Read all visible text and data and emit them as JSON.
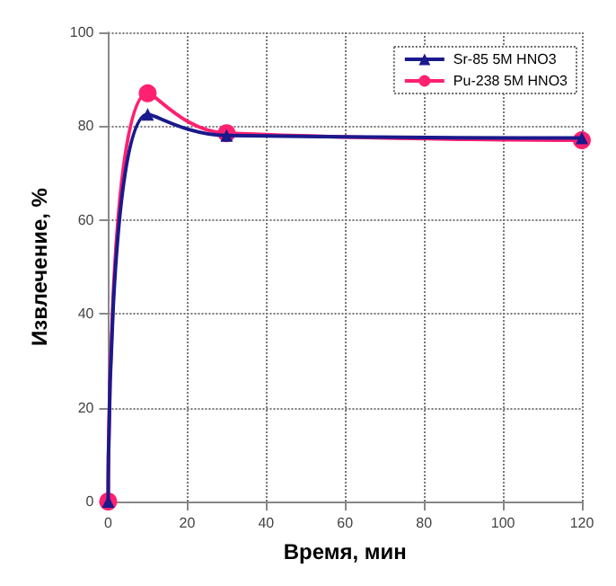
{
  "chart_data": {
    "type": "line",
    "xlabel": "Время, мин",
    "ylabel": "Извлечение, %",
    "x": [
      0,
      10,
      30,
      120
    ],
    "series": [
      {
        "name": "Sr-85 5M HNO3",
        "color": "#1a1a8c",
        "marker": "triangle",
        "values": [
          0,
          82.5,
          78,
          77.5
        ]
      },
      {
        "name": "Pu-238 5M HNO3",
        "color": "#ff2070",
        "marker": "circle",
        "values": [
          0,
          87,
          78.5,
          77
        ]
      }
    ],
    "xlim": [
      0,
      120
    ],
    "xticks": [
      0,
      20,
      40,
      60,
      80,
      100,
      120
    ],
    "ylim": [
      0,
      100
    ],
    "yticks": [
      0,
      20,
      40,
      60,
      80,
      100
    ],
    "grid": true,
    "legend": "top right"
  }
}
